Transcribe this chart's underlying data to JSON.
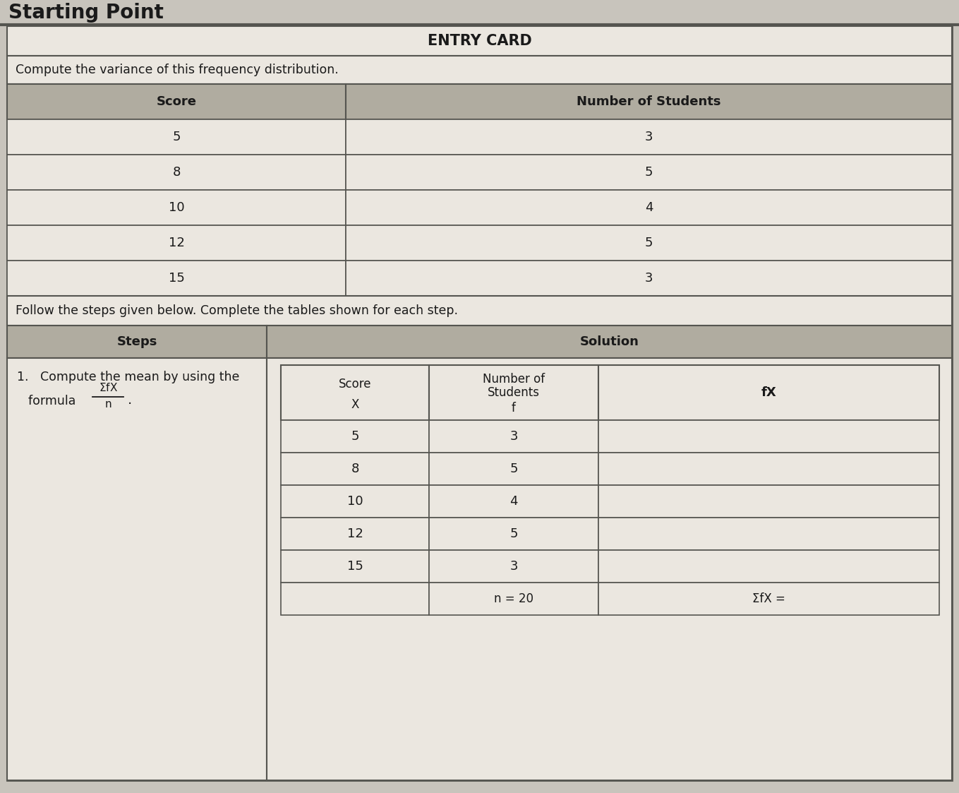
{
  "bg_color": "#c8c4bc",
  "card_bg": "#e8e4dc",
  "title_text": "Starting Point",
  "title_bg": "#c8c4bc",
  "entry_card_title": "ENTRY CARD",
  "subtitle": "Compute the variance of this frequency distribution.",
  "top_headers": [
    "Score",
    "Number of Students"
  ],
  "top_data": [
    [
      "5",
      "3"
    ],
    [
      "8",
      "5"
    ],
    [
      "10",
      "4"
    ],
    [
      "12",
      "5"
    ],
    [
      "15",
      "3"
    ]
  ],
  "follow_text": "Follow the steps given below. Complete the tables shown for each step.",
  "steps_header": "Steps",
  "solution_header": "Solution",
  "step1_line1": "1.   Compute the mean by using the",
  "step1_line2": "formula ",
  "inner_col1_header1": "Score",
  "inner_col1_header2": "X",
  "inner_col2_header1": "Number of",
  "inner_col2_header2": "Students",
  "inner_col2_header3": "f",
  "inner_col3_header": "fX",
  "inner_scores": [
    "5",
    "8",
    "10",
    "12",
    "15"
  ],
  "inner_freqs": [
    "3",
    "5",
    "4",
    "5",
    "3"
  ],
  "footer_col2": "n = 20",
  "footer_col3": "ΣfX =",
  "header_bg": "#b0aca0",
  "cell_bg": "#e0dcd4",
  "white_bg": "#ebe7e0",
  "border_color": "#555550",
  "text_color": "#1a1a1a"
}
